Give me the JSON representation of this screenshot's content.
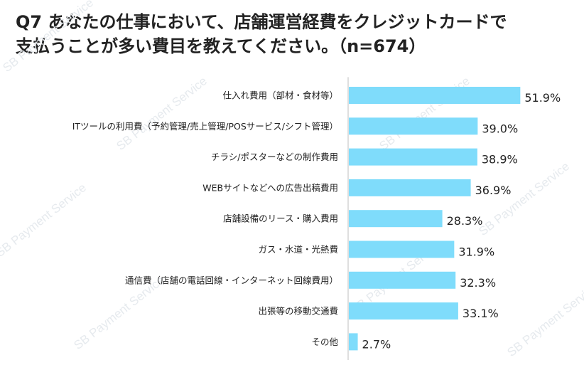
{
  "title_lines": [
    "Q7 あなたの仕事において、店舗運営経費をクレジットカードで",
    "支払うことが多い費目を教えてください。（n=674）"
  ],
  "watermark": "SB Payment Service",
  "colors": {
    "bar": "#7fdcfb",
    "axis": "#bfbfbf"
  },
  "chart_data": {
    "type": "bar",
    "orientation": "horizontal",
    "categories": [
      "仕入れ費用（部材・食材等）",
      "ITツールの利用費（予約管理/売上管理/POSサービス/シフト管理）",
      "チラシ/ポスターなどの制作費用",
      "WEBサイトなどへの広告出稿費用",
      "店舗設備のリース・購入費用",
      "ガス・水道・光熱費",
      "通信費（店舗の電話回線・インターネット回線費用）",
      "出張等の移動交通費",
      "その他"
    ],
    "values": [
      51.9,
      39.0,
      38.9,
      36.9,
      28.3,
      31.9,
      32.3,
      33.1,
      2.7
    ],
    "value_labels": [
      "51.9%",
      "39.0%",
      "38.9%",
      "36.9%",
      "28.3%",
      "31.9%",
      "32.3%",
      "33.1%",
      "2.7%"
    ],
    "xlim": [
      0,
      60
    ],
    "grid": false,
    "legend": "none"
  }
}
